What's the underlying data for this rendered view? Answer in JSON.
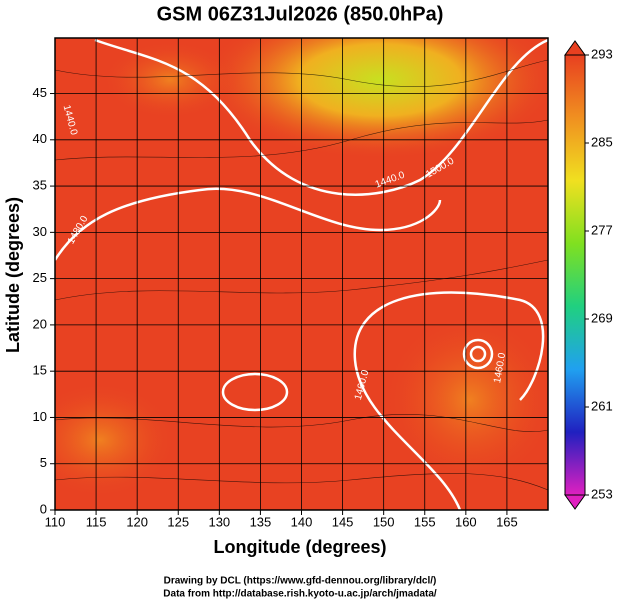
{
  "chart_data": {
    "type": "map",
    "title": "GSM 06Z31Jul2026 (850.0hPa)",
    "x_label": "Longitude (degrees)",
    "y_label": "Latitude  (degrees)",
    "xlim": [
      110,
      170
    ],
    "xticks": [
      110,
      115,
      120,
      125,
      130,
      135,
      140,
      145,
      150,
      155,
      160,
      165
    ],
    "ylim": [
      0,
      51
    ],
    "yticks": [
      0,
      5,
      10,
      15,
      20,
      25,
      30,
      35,
      40,
      45
    ],
    "grid": true,
    "colorbar": {
      "lim": [
        253,
        293
      ],
      "ticks": [
        253,
        261,
        269,
        277,
        285,
        293
      ],
      "colors": [
        "#e020c0",
        "#2020c0",
        "#20a0f0",
        "#20d080",
        "#80e020",
        "#f0e020",
        "#f09020",
        "#e84020"
      ]
    },
    "contour_labels": [
      "1440.0",
      "1440.0",
      "1480.0",
      "1500.0",
      "1460.0",
      "1460.0"
    ],
    "credits": [
      "Drawing by DCL (https://www.gfd-dennou.org/library/dcl/)",
      "Data from http://database.rish.kyoto-u.ac.jp/arch/jmadata/"
    ]
  }
}
